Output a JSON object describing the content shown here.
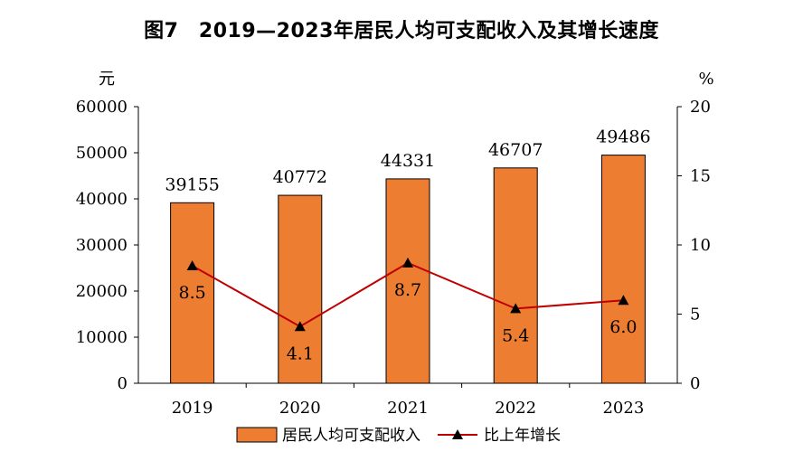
{
  "chart_data": {
    "type": "bar",
    "title": "图7　2019—2023年居民人均可支配收入及其增长速度",
    "categories": [
      "2019",
      "2020",
      "2021",
      "2022",
      "2023"
    ],
    "series": [
      {
        "name": "居民人均可支配收入",
        "type": "bar",
        "axis": "left",
        "values": [
          39155,
          40772,
          44331,
          46707,
          49486
        ],
        "color": "#ED7D31"
      },
      {
        "name": "比上年增长",
        "type": "line",
        "axis": "right",
        "values": [
          8.5,
          4.1,
          8.7,
          5.4,
          6.0
        ],
        "labels": [
          "8.5",
          "4.1",
          "8.7",
          "5.4",
          "6.0"
        ],
        "color": "#C00000"
      }
    ],
    "y_left": {
      "unit": "元",
      "ylim": [
        0,
        60000
      ],
      "ticks": [
        0,
        10000,
        20000,
        30000,
        40000,
        50000,
        60000
      ]
    },
    "y_right": {
      "unit": "%",
      "ylim": [
        0,
        20
      ],
      "ticks": [
        0,
        5,
        10,
        15,
        20
      ]
    },
    "legend": {
      "position": "bottom",
      "entries": [
        "居民人均可支配收入",
        "比上年增长"
      ]
    }
  }
}
